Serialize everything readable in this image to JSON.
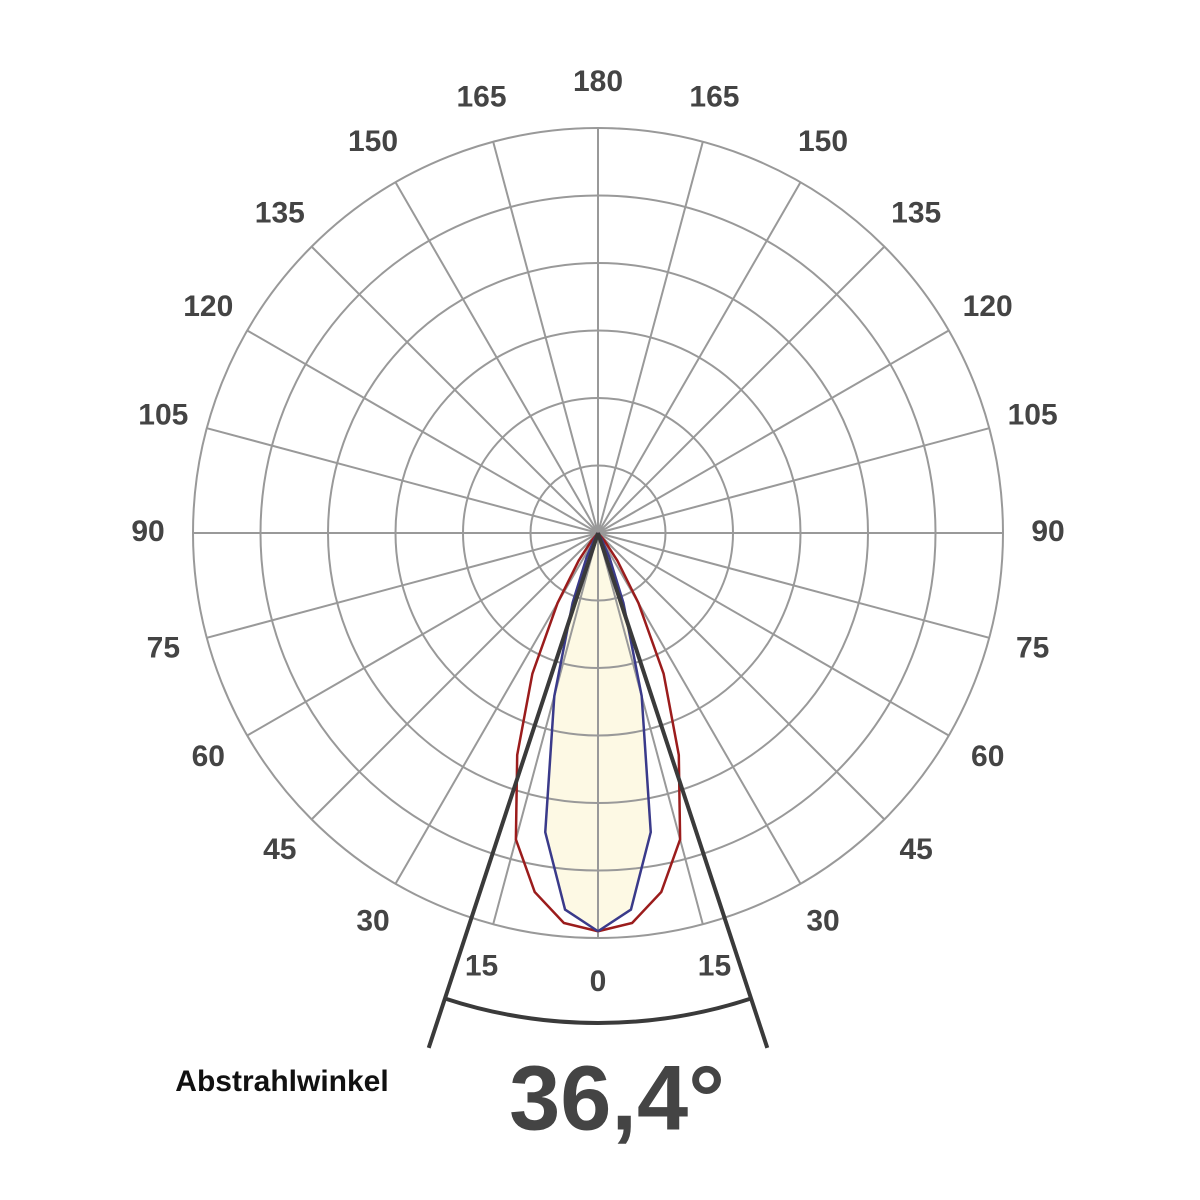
{
  "chart_data": {
    "type": "polar",
    "angle_ticks": [
      0,
      15,
      30,
      45,
      60,
      75,
      90,
      105,
      120,
      135,
      150,
      165,
      180
    ],
    "rlim": [
      0,
      6
    ],
    "rticks": [
      1,
      2,
      3,
      4,
      5,
      6
    ],
    "grid": true,
    "x": [
      0,
      5,
      10,
      15,
      20,
      25,
      30,
      35,
      40,
      45
    ],
    "series": [
      {
        "color": "#9b1c1c",
        "values": [
          5.9,
          5.8,
          5.4,
          4.7,
          3.5,
          2.3,
          1.2,
          0.5,
          0.15,
          0
        ]
      },
      {
        "color": "#3a3a8a",
        "values": [
          5.9,
          5.6,
          4.5,
          2.5,
          1.1,
          0.4,
          0.1,
          0,
          0,
          0
        ]
      }
    ],
    "fill_color": "#fdf9e4",
    "beam_angle_title": "Abstrahlwinkel",
    "beam_angle": 36.4,
    "beam_angle_label": "36,4°"
  }
}
